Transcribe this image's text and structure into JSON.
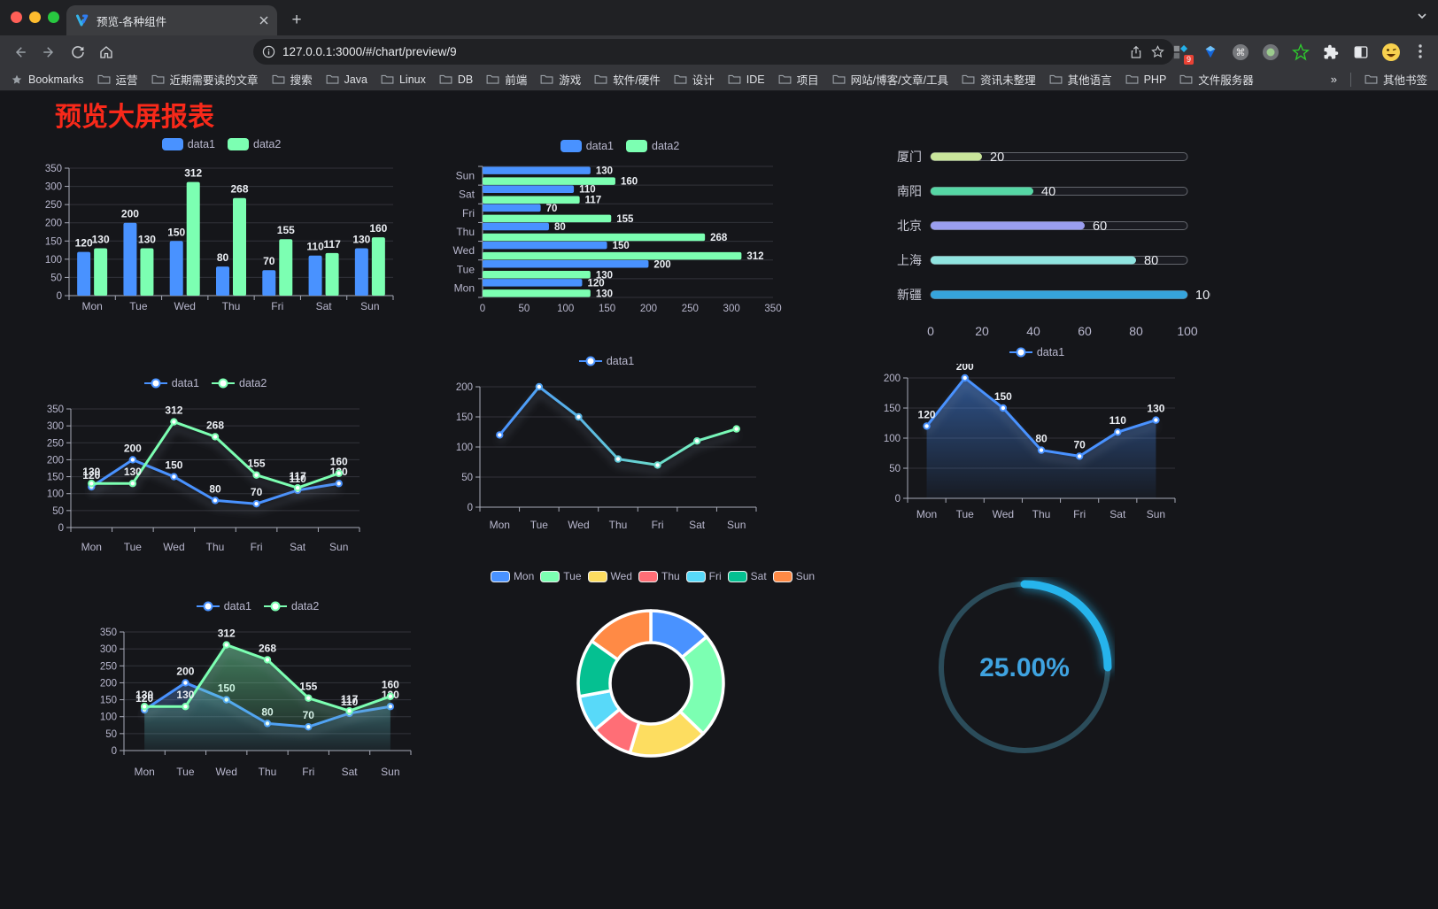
{
  "browser": {
    "tab": {
      "title": "预览-各种组件"
    },
    "url": "127.0.0.1:3000/#/chart/preview/9",
    "extension_badge": "9",
    "bookmarks_bar": {
      "root_label": "Bookmarks",
      "folders": [
        "运营",
        "近期需要读的文章",
        "搜索",
        "Java",
        "Linux",
        "DB",
        "前端",
        "游戏",
        "软件/硬件",
        "设计",
        "IDE",
        "项目",
        "网站/博客/文章/工具",
        "资讯未整理",
        "其他语言",
        "PHP",
        "文件服务器"
      ],
      "overflow_chevron": "»",
      "other_bookmarks": "其他书签"
    }
  },
  "page": {
    "title": "预览大屏报表",
    "title_color": "#f8291a"
  },
  "chart_data": [
    {
      "id": "bar-vertical",
      "type": "bar",
      "categories": [
        "Mon",
        "Tue",
        "Wed",
        "Thu",
        "Fri",
        "Sat",
        "Sun"
      ],
      "series": [
        {
          "name": "data1",
          "color": "#4992ff",
          "values": [
            120,
            200,
            150,
            80,
            70,
            110,
            130
          ]
        },
        {
          "name": "data2",
          "color": "#7cffb2",
          "values": [
            130,
            130,
            312,
            268,
            155,
            117,
            160
          ]
        }
      ],
      "ylim": [
        0,
        350
      ],
      "ytick_step": 50,
      "yticks": [
        0,
        50,
        100,
        150,
        200,
        250,
        300,
        350
      ],
      "grid": true,
      "legend_position": "top",
      "value_labels": true
    },
    {
      "id": "bar-horizontal",
      "type": "bar-horizontal",
      "categories": [
        "Mon",
        "Tue",
        "Wed",
        "Thu",
        "Fri",
        "Sat",
        "Sun"
      ],
      "series": [
        {
          "name": "data1",
          "color": "#4992ff",
          "values": [
            120,
            200,
            150,
            80,
            70,
            110,
            130
          ]
        },
        {
          "name": "data2",
          "color": "#7cffb2",
          "values": [
            130,
            130,
            312,
            268,
            155,
            117,
            160
          ]
        }
      ],
      "xlim": [
        0,
        350
      ],
      "xticks": [
        0,
        50,
        100,
        150,
        200,
        250,
        300,
        350
      ],
      "grid": true,
      "legend_position": "top",
      "value_labels": true
    },
    {
      "id": "progress-list",
      "type": "progress",
      "items": [
        {
          "label": "厦门",
          "value": 20,
          "color": "#c9e59b"
        },
        {
          "label": "南阳",
          "value": 40,
          "color": "#56d7a5"
        },
        {
          "label": "北京",
          "value": 60,
          "color": "#9a9ef0"
        },
        {
          "label": "上海",
          "value": 80,
          "color": "#90e4e0"
        },
        {
          "label": "新疆",
          "value": 100,
          "color": "#36a4dc"
        }
      ],
      "max": 100,
      "ticks": [
        0,
        20,
        40,
        60,
        80,
        100
      ]
    },
    {
      "id": "line-two-series",
      "type": "line",
      "categories": [
        "Mon",
        "Tue",
        "Wed",
        "Thu",
        "Fri",
        "Sat",
        "Sun"
      ],
      "series": [
        {
          "name": "data1",
          "color": "#4992ff",
          "values": [
            120,
            200,
            150,
            80,
            70,
            110,
            130
          ]
        },
        {
          "name": "data2",
          "color": "#7cffb2",
          "values": [
            130,
            130,
            312,
            268,
            155,
            117,
            160
          ]
        }
      ],
      "ylim": [
        0,
        350
      ],
      "yticks": [
        0,
        50,
        100,
        150,
        200,
        250,
        300,
        350
      ],
      "grid": true,
      "legend_position": "top",
      "value_labels": true
    },
    {
      "id": "line-gradient",
      "type": "line",
      "categories": [
        "Mon",
        "Tue",
        "Wed",
        "Thu",
        "Fri",
        "Sat",
        "Sun"
      ],
      "series": [
        {
          "name": "data1",
          "color": "#4992ff",
          "values": [
            120,
            200,
            150,
            80,
            70,
            110,
            130
          ]
        }
      ],
      "line_gradient": [
        "#4992ff",
        "#7cffb2"
      ],
      "ylim": [
        0,
        200
      ],
      "yticks": [
        0,
        50,
        100,
        150,
        200
      ],
      "grid": true,
      "legend_position": "top",
      "value_labels": false
    },
    {
      "id": "area-blue",
      "type": "area",
      "categories": [
        "Mon",
        "Tue",
        "Wed",
        "Thu",
        "Fri",
        "Sat",
        "Sun"
      ],
      "series": [
        {
          "name": "data1",
          "color": "#4992ff",
          "values": [
            120,
            200,
            150,
            80,
            70,
            110,
            130
          ]
        }
      ],
      "ylim": [
        0,
        200
      ],
      "yticks": [
        0,
        50,
        100,
        150,
        200
      ],
      "grid": true,
      "legend_position": "top",
      "value_labels": true
    },
    {
      "id": "area-two-series",
      "type": "area",
      "categories": [
        "Mon",
        "Tue",
        "Wed",
        "Thu",
        "Fri",
        "Sat",
        "Sun"
      ],
      "series": [
        {
          "name": "data1",
          "color": "#4992ff",
          "values": [
            120,
            200,
            150,
            80,
            70,
            110,
            130
          ]
        },
        {
          "name": "data2",
          "color": "#7cffb2",
          "values": [
            130,
            130,
            312,
            268,
            155,
            117,
            160
          ]
        }
      ],
      "ylim": [
        0,
        350
      ],
      "yticks": [
        0,
        50,
        100,
        150,
        200,
        250,
        300,
        350
      ],
      "grid": true,
      "legend_position": "top",
      "value_labels": true
    },
    {
      "id": "pie-donut",
      "type": "pie",
      "labels": [
        "Mon",
        "Tue",
        "Wed",
        "Thu",
        "Fri",
        "Sat",
        "Sun"
      ],
      "values": [
        120,
        200,
        150,
        80,
        70,
        110,
        130
      ],
      "colors": [
        "#4992ff",
        "#7cffb2",
        "#fddd60",
        "#ff6e76",
        "#58d9f9",
        "#05c091",
        "#ff8a45"
      ],
      "donut": true,
      "border_color": "#ffffff",
      "legend_position": "top"
    },
    {
      "id": "gauge-percent",
      "type": "gauge",
      "value": 25,
      "display": "25.00%",
      "color": "#28b4ec",
      "track_color": "#2b4c5a",
      "text_color": "#3fa3e0"
    }
  ]
}
